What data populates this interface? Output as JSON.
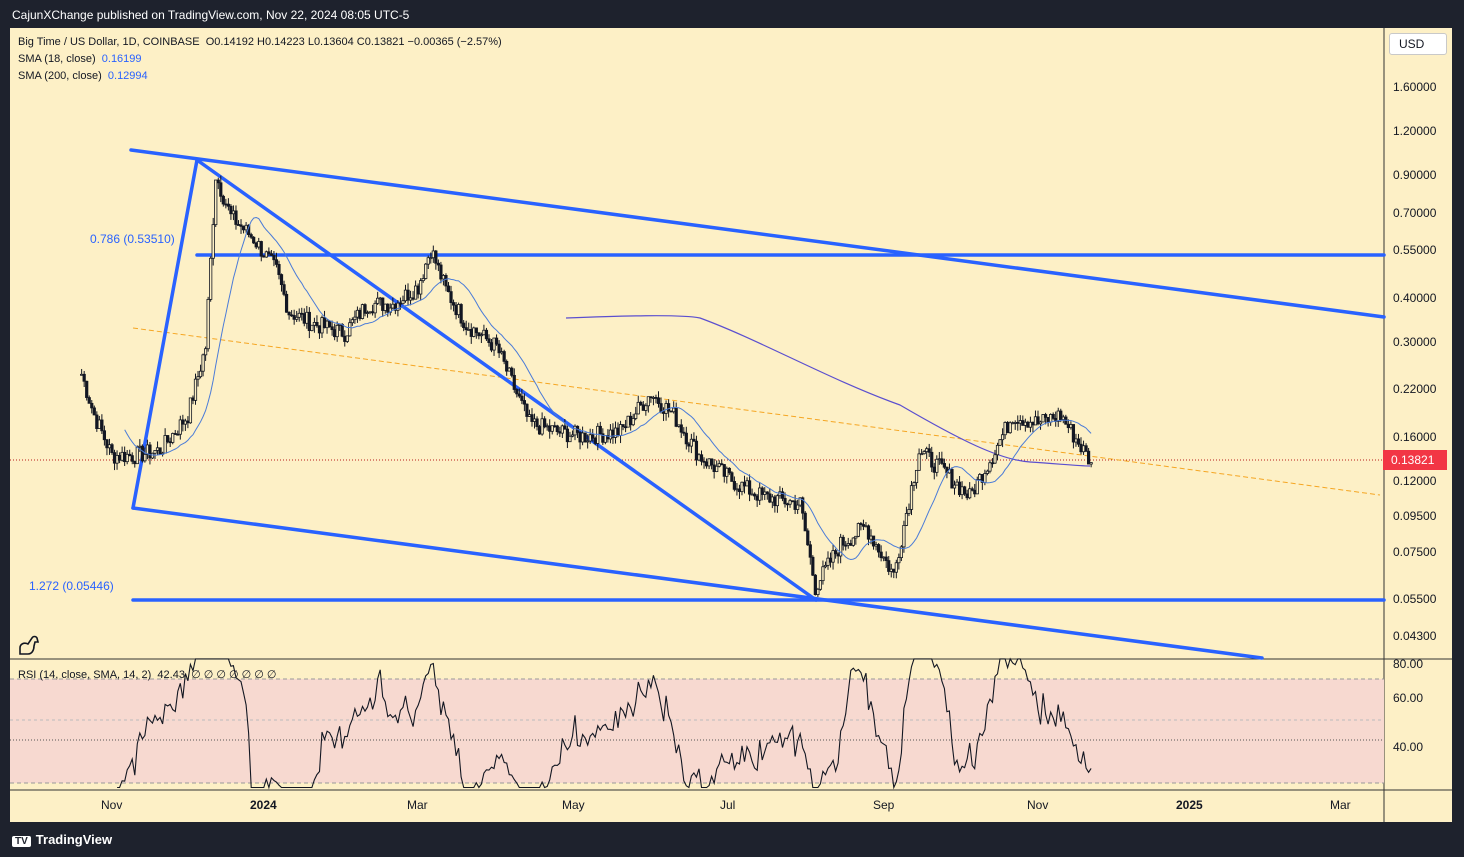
{
  "publisher": "CajunXChange published on TradingView.com, Nov 22, 2024 08:05 UTC-5",
  "footer": {
    "brand": "TradingView"
  },
  "legend": {
    "symbol": "Big Time / US Dollar, 1D, COINBASE",
    "ohlc": "O0.14192  H0.14223  L0.13604  C0.13821  −0.00365 (−2.57%)",
    "sma18_label": "SMA (18, close)",
    "sma18_value": "0.16199",
    "sma200_label": "SMA (200, close)",
    "sma200_value": "0.12994",
    "rsi_label": "RSI (14, close, SMA, 14, 2)",
    "rsi_value": "42.43",
    "rsi_extra": "∅ ∅ ∅ ∅ ∅ ∅ ∅"
  },
  "currency_button": "USD",
  "last_price": "0.13821",
  "fib_labels": [
    "0.786 (0.53510)",
    "1.272 (0.05446)"
  ],
  "colors": {
    "background": "#fdf0c6",
    "trendline": "#2962ff",
    "up": "#131722",
    "down": "#131722",
    "last_price": "#f23645",
    "rsi_band": "#f7d9d0"
  },
  "chart_data": [
    {
      "type": "candlestick",
      "title": "Big Time / US Dollar, 1D, COINBASE",
      "y_scale": "log",
      "y_ticks": [
        "1.60000",
        "1.20000",
        "0.90000",
        "0.70000",
        "0.55000",
        "0.40000",
        "0.30000",
        "0.22000",
        "0.16000",
        "0.12000",
        "0.09500",
        "0.07500",
        "0.05500",
        "0.04300"
      ],
      "x_ticks": [
        "Nov",
        "2024",
        "Mar",
        "May",
        "Jul",
        "Sep",
        "Nov",
        "2025",
        "Mar"
      ],
      "series": [
        {
          "name": "SMA (18, close)",
          "last": 0.16199
        },
        {
          "name": "SMA (200, close)",
          "last": 0.12994
        }
      ],
      "close_path": [
        [
          "2023-10-20",
          0.25
        ],
        [
          "2023-10-25",
          0.19
        ],
        [
          "2023-11-01",
          0.145
        ],
        [
          "2023-11-10",
          0.145
        ],
        [
          "2023-11-20",
          0.15
        ],
        [
          "2023-12-01",
          0.19
        ],
        [
          "2023-12-08",
          0.3
        ],
        [
          "2023-12-12",
          0.95
        ],
        [
          "2023-12-18",
          0.72
        ],
        [
          "2023-12-27",
          0.62
        ],
        [
          "2024-01-05",
          0.5
        ],
        [
          "2024-01-10",
          0.38
        ],
        [
          "2024-01-20",
          0.35
        ],
        [
          "2024-02-01",
          0.33
        ],
        [
          "2024-02-10",
          0.4
        ],
        [
          "2024-02-20",
          0.4
        ],
        [
          "2024-03-01",
          0.45
        ],
        [
          "2024-03-06",
          0.58
        ],
        [
          "2024-03-12",
          0.44
        ],
        [
          "2024-03-20",
          0.35
        ],
        [
          "2024-04-01",
          0.3
        ],
        [
          "2024-04-14",
          0.18
        ],
        [
          "2024-04-25",
          0.17
        ],
        [
          "2024-05-05",
          0.165
        ],
        [
          "2024-05-20",
          0.17
        ],
        [
          "2024-06-01",
          0.22
        ],
        [
          "2024-06-10",
          0.19
        ],
        [
          "2024-06-20",
          0.145
        ],
        [
          "2024-07-05",
          0.12
        ],
        [
          "2024-07-15",
          0.11
        ],
        [
          "2024-07-30",
          0.105
        ],
        [
          "2024-08-05",
          0.06
        ],
        [
          "2024-08-15",
          0.08
        ],
        [
          "2024-08-25",
          0.09
        ],
        [
          "2024-09-05",
          0.065
        ],
        [
          "2024-09-15",
          0.15
        ],
        [
          "2024-09-25",
          0.13
        ],
        [
          "2024-10-05",
          0.11
        ],
        [
          "2024-10-15",
          0.15
        ],
        [
          "2024-10-22",
          0.19
        ],
        [
          "2024-11-01",
          0.18
        ],
        [
          "2024-11-10",
          0.19
        ],
        [
          "2024-11-22",
          0.13821
        ]
      ],
      "annotations": [
        "0.786 (0.53510)",
        "1.272 (0.05446)"
      ]
    },
    {
      "type": "line",
      "title": "RSI (14, close, SMA, 14, 2)",
      "y_ticks": [
        "80.00",
        "60.00",
        "40.00"
      ],
      "last": 42.43,
      "band": [
        30,
        70
      ]
    }
  ]
}
